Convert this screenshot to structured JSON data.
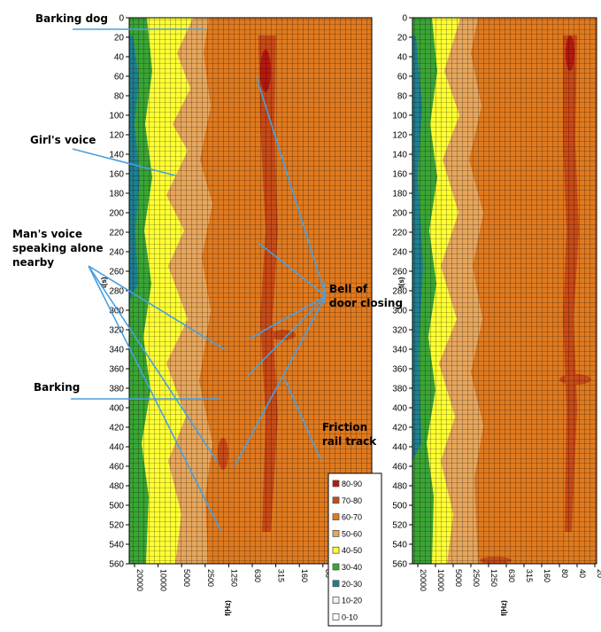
{
  "chart_data": [
    {
      "type": "heatmap",
      "ylabel": "t(s)",
      "xlabel": "f(Hz)",
      "y_ticks": [
        "0",
        "20",
        "40",
        "60",
        "80",
        "100",
        "120",
        "140",
        "160",
        "180",
        "200",
        "220",
        "240",
        "260",
        "280",
        "300",
        "320",
        "340",
        "360",
        "380",
        "400",
        "420",
        "440",
        "460",
        "480",
        "500",
        "520",
        "540",
        "560"
      ],
      "ylim": [
        0,
        560
      ],
      "x_ticks": [
        "20000",
        "10000",
        "5000",
        "2500",
        "1250",
        "630",
        "315",
        "160",
        "80",
        "40",
        "20"
      ],
      "x_scale": "log-reversed",
      "color_bands": [
        {
          "range": [
            0,
            10
          ],
          "label": "0-10",
          "color": "#ffffff"
        },
        {
          "range": [
            10,
            20
          ],
          "label": "10-20",
          "color": "#f0f0ff"
        },
        {
          "range": [
            20,
            30
          ],
          "label": "20-30",
          "color": "#1f7f8f"
        },
        {
          "range": [
            30,
            40
          ],
          "label": "30-40",
          "color": "#3aa535"
        },
        {
          "range": [
            40,
            50
          ],
          "label": "40-50",
          "color": "#ffff33"
        },
        {
          "range": [
            50,
            60
          ],
          "label": "50-60",
          "color": "#e6a65c"
        },
        {
          "range": [
            60,
            70
          ],
          "label": "60-70",
          "color": "#e07a1f"
        },
        {
          "range": [
            70,
            80
          ],
          "label": "70-80",
          "color": "#c84a16"
        },
        {
          "range": [
            80,
            90
          ],
          "label": "80-90",
          "color": "#b5180f"
        }
      ],
      "annotations": [
        {
          "text": "Barking dog",
          "t": 5
        },
        {
          "text": "Girl's voice",
          "t": 155
        },
        {
          "text": "Man's voice speaking alone nearby",
          "t": 270
        },
        {
          "text": "Barking",
          "t": 385
        },
        {
          "text": "Bell of door closing",
          "t": 260
        },
        {
          "text": "Friction rail track",
          "t": 405
        }
      ]
    },
    {
      "type": "heatmap",
      "ylabel": "t(s)",
      "xlabel": "f(Hz)",
      "y_ticks": [
        "0",
        "20",
        "40",
        "60",
        "80",
        "100",
        "120",
        "140",
        "160",
        "180",
        "200",
        "220",
        "240",
        "260",
        "280",
        "300",
        "320",
        "340",
        "360",
        "380",
        "400",
        "420",
        "440",
        "460",
        "480",
        "500",
        "520",
        "540",
        "560"
      ],
      "ylim": [
        0,
        560
      ],
      "x_ticks": [
        "20000",
        "10000",
        "5000",
        "2500",
        "1250",
        "630",
        "315",
        "160",
        "80",
        "40",
        "20"
      ],
      "x_scale": "log-reversed"
    }
  ],
  "legend": {
    "items": [
      {
        "label": "80-90",
        "color": "#b5180f"
      },
      {
        "label": "70-80",
        "color": "#c84a16"
      },
      {
        "label": "60-70",
        "color": "#e07a1f"
      },
      {
        "label": "50-60",
        "color": "#e6a65c"
      },
      {
        "label": "40-50",
        "color": "#ffff33"
      },
      {
        "label": "30-40",
        "color": "#3aa535"
      },
      {
        "label": "20-30",
        "color": "#1f7f8f"
      },
      {
        "label": "10-20",
        "color": "#f0f0ff"
      },
      {
        "label": "0-10",
        "color": "#ffffff"
      }
    ]
  },
  "annotation_labels": {
    "barking_dog": "Barking dog",
    "girls_voice": "Girl's voice",
    "mans_voice_1": "Man's voice",
    "mans_voice_2": "speaking alone",
    "mans_voice_3": "nearby",
    "barking": "Barking",
    "bell_1": "Bell of",
    "bell_2": "door closing",
    "friction_1": "Friction",
    "friction_2": "rail track"
  },
  "line_color": "#4a9fe0"
}
